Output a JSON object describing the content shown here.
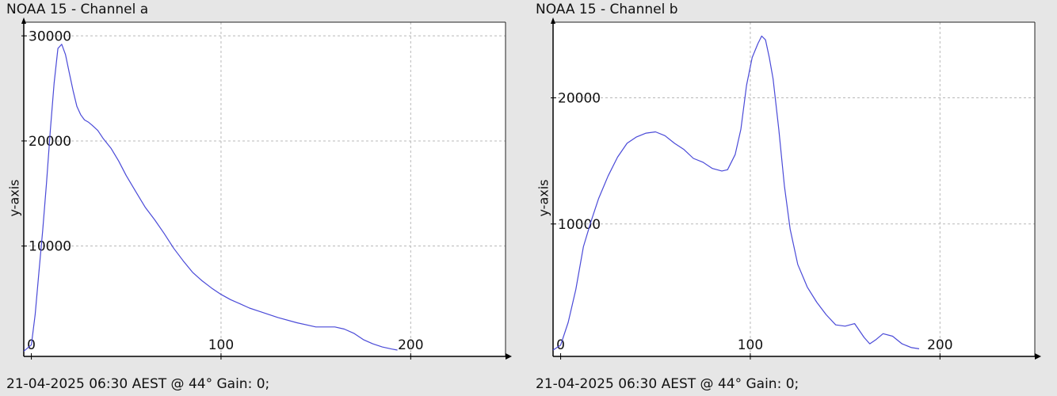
{
  "chart_data": [
    {
      "type": "line",
      "title": "NOAA 15 - Channel a",
      "footer": "21-04-2025 06:30 AEST @ 44° Gain: 0;",
      "xlabel": "",
      "ylabel": "y-axis",
      "xlim": [
        -4,
        250
      ],
      "ylim": [
        -500,
        31300
      ],
      "xticks": [
        0,
        100,
        200
      ],
      "yticks": [
        10000,
        20000,
        30000
      ],
      "grid": true,
      "line_color": "#4a4ad8",
      "series": [
        {
          "x": [
            -4,
            0,
            2,
            4,
            6,
            8,
            10,
            12,
            14,
            16,
            18,
            20,
            22,
            24,
            26,
            28,
            30,
            32,
            35,
            38,
            42,
            46,
            50,
            55,
            60,
            65,
            70,
            75,
            80,
            85,
            90,
            95,
            100,
            105,
            110,
            115,
            120,
            130,
            140,
            150,
            155,
            160,
            165,
            170,
            175,
            180,
            185,
            190,
            193
          ],
          "y": [
            0,
            600,
            3500,
            7500,
            11500,
            16000,
            21000,
            25500,
            28800,
            29200,
            28200,
            26500,
            24800,
            23300,
            22500,
            22000,
            21800,
            21500,
            21000,
            20200,
            19300,
            18100,
            16700,
            15200,
            13700,
            12500,
            11200,
            9800,
            8600,
            7500,
            6700,
            6000,
            5400,
            4900,
            4500,
            4100,
            3800,
            3200,
            2700,
            2300,
            2300,
            2300,
            2100,
            1700,
            1100,
            700,
            400,
            200,
            100
          ]
        }
      ]
    },
    {
      "type": "line",
      "title": "NOAA 15 - Channel b",
      "footer": "21-04-2025 06:30 AEST @ 44° Gain: 0;",
      "xlabel": "",
      "ylabel": "y-axis",
      "xlim": [
        -4,
        250
      ],
      "ylim": [
        -500,
        26000
      ],
      "xticks": [
        0,
        100,
        200
      ],
      "yticks": [
        10000,
        20000
      ],
      "grid": true,
      "line_color": "#4a4ad8",
      "series": [
        {
          "x": [
            -4,
            0,
            4,
            8,
            12,
            16,
            20,
            25,
            30,
            35,
            40,
            45,
            50,
            55,
            60,
            65,
            70,
            75,
            80,
            85,
            88,
            92,
            95,
            98,
            101,
            104,
            106,
            108,
            110,
            112,
            115,
            118,
            121,
            125,
            130,
            135,
            140,
            145,
            150,
            155,
            160,
            163,
            166,
            170,
            175,
            180,
            185,
            189
          ],
          "y": [
            0,
            400,
            2200,
            4800,
            8200,
            10200,
            12000,
            13800,
            15300,
            16400,
            16900,
            17200,
            17300,
            17000,
            16400,
            15900,
            15200,
            14900,
            14400,
            14200,
            14300,
            15500,
            17500,
            21000,
            23200,
            24300,
            24900,
            24600,
            23200,
            21500,
            17500,
            13000,
            9600,
            6800,
            5000,
            3800,
            2800,
            2000,
            1900,
            2100,
            1000,
            500,
            800,
            1300,
            1100,
            500,
            200,
            100
          ]
        }
      ]
    }
  ]
}
